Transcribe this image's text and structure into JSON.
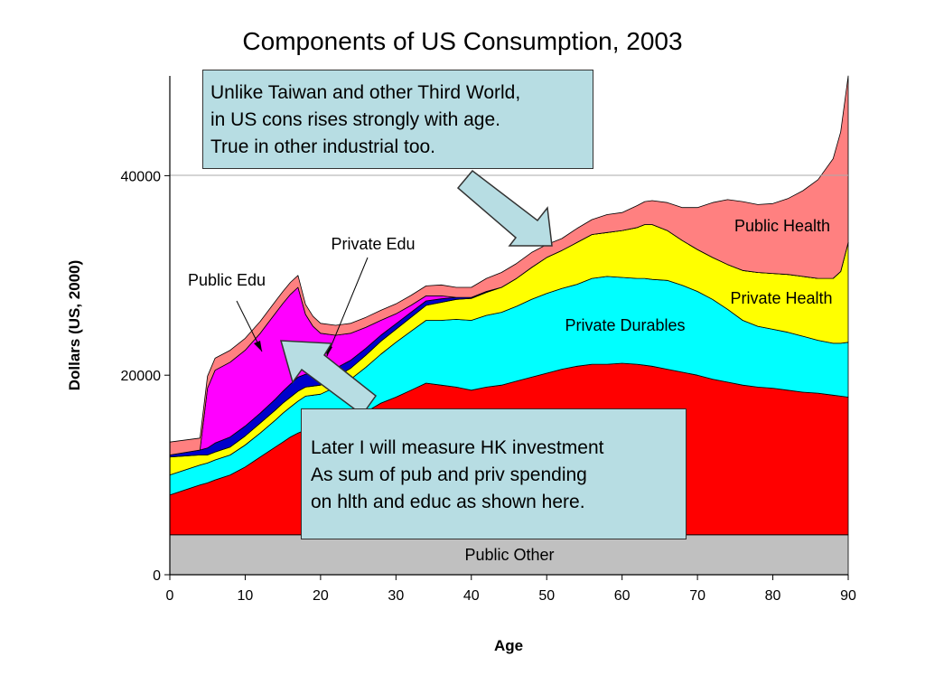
{
  "chart_data": {
    "type": "area",
    "stacked": true,
    "title": "Components of US Consumption, 2003",
    "xlabel": "Age",
    "ylabel": "Dollars (US, 2000)",
    "xlim": [
      0,
      90
    ],
    "ylim": [
      0,
      50000
    ],
    "xticks": [
      0,
      10,
      20,
      30,
      40,
      50,
      60,
      70,
      80,
      90
    ],
    "yticks": [
      0,
      20000,
      40000
    ],
    "grid": "horizontal at 40000",
    "x": [
      0,
      4,
      5,
      6,
      8,
      10,
      12,
      14,
      15,
      16,
      17,
      18,
      19,
      20,
      22,
      24,
      26,
      28,
      30,
      32,
      34,
      36,
      38,
      40,
      42,
      44,
      46,
      48,
      50,
      52,
      54,
      56,
      58,
      60,
      62,
      63,
      64,
      66,
      68,
      70,
      72,
      74,
      76,
      78,
      80,
      82,
      84,
      86,
      88,
      89,
      90
    ],
    "series": [
      {
        "name": "Public Other",
        "color": "#c0c0c0",
        "values": [
          4000,
          4000,
          4000,
          4000,
          4000,
          4000,
          4000,
          4000,
          4000,
          4000,
          4000,
          4000,
          4000,
          4000,
          4000,
          4000,
          4000,
          4000,
          4000,
          4000,
          4000,
          4000,
          4000,
          4000,
          4000,
          4000,
          4000,
          4000,
          4000,
          4000,
          4000,
          4000,
          4000,
          4000,
          4000,
          4000,
          4000,
          4000,
          4000,
          4000,
          4000,
          4000,
          4000,
          4000,
          4000,
          4000,
          4000,
          4000,
          4000,
          4000,
          4000
        ]
      },
      {
        "color": "#ff0000",
        "values": [
          4000,
          5000,
          5200,
          5500,
          6000,
          6800,
          7800,
          8800,
          9300,
          9800,
          10200,
          10500,
          10500,
          10500,
          11000,
          11500,
          12300,
          13200,
          13800,
          14500,
          15200,
          15000,
          14800,
          14500,
          14800,
          15000,
          15400,
          15800,
          16200,
          16600,
          16900,
          17100,
          17100,
          17200,
          17100,
          17000,
          16900,
          16600,
          16300,
          16000,
          15600,
          15300,
          15000,
          14800,
          14700,
          14500,
          14300,
          14200,
          14000,
          13900,
          13800
        ]
      },
      {
        "name": "Private Durables",
        "color": "#00ffff",
        "values": [
          2000,
          2000,
          2000,
          2000,
          2000,
          2200,
          2400,
          2700,
          2900,
          3000,
          3200,
          3400,
          3500,
          3600,
          3800,
          4100,
          4500,
          4900,
          5500,
          5900,
          6300,
          6500,
          6800,
          7000,
          7200,
          7300,
          7500,
          7800,
          8000,
          8100,
          8200,
          8600,
          8800,
          8600,
          8600,
          8700,
          8700,
          8900,
          8700,
          8400,
          8000,
          7300,
          6500,
          6100,
          5900,
          5800,
          5600,
          5300,
          5200,
          5300,
          5500
        ]
      },
      {
        "name": "Private Health",
        "color": "#ffff00",
        "values": [
          1800,
          1000,
          800,
          800,
          800,
          900,
          1000,
          1000,
          1000,
          1000,
          1000,
          900,
          900,
          900,
          1000,
          1100,
          1200,
          1300,
          1300,
          1400,
          1500,
          1800,
          2000,
          2200,
          2300,
          2500,
          2800,
          3200,
          3600,
          3800,
          4200,
          4400,
          4400,
          4700,
          5100,
          5400,
          5500,
          5000,
          4500,
          4200,
          4200,
          4500,
          5000,
          5400,
          5600,
          5800,
          6000,
          6200,
          6500,
          7200,
          10000
        ]
      },
      {
        "color": "#0000cc",
        "values": [
          200,
          500,
          700,
          900,
          1000,
          1000,
          1000,
          1100,
          1200,
          1300,
          1400,
          1300,
          1200,
          1100,
          900,
          800,
          700,
          600,
          550,
          500,
          450,
          350,
          200,
          100,
          100,
          0,
          0,
          0,
          0,
          0,
          0,
          0,
          0,
          0,
          0,
          0,
          0,
          0,
          0,
          0,
          0,
          0,
          0,
          0,
          0,
          0,
          0,
          0,
          0,
          0,
          0
        ]
      },
      {
        "name": "Private Edu",
        "color": "#000000",
        "values": [
          0,
          0,
          0,
          0,
          0,
          0,
          0,
          0,
          0,
          0,
          0,
          0,
          0,
          0,
          0,
          0,
          0,
          0,
          0,
          0,
          0,
          0,
          0,
          0,
          0,
          0,
          0,
          0,
          0,
          0,
          0,
          0,
          0,
          0,
          0,
          0,
          0,
          0,
          0,
          0,
          0,
          0,
          0,
          0,
          0,
          0,
          0,
          0,
          0,
          0,
          0
        ]
      },
      {
        "name": "Public Edu",
        "color": "#ff00ff",
        "values": [
          0,
          0,
          6000,
          7300,
          7500,
          7600,
          8000,
          8600,
          8800,
          9000,
          9000,
          6000,
          4800,
          4100,
          3300,
          2700,
          2100,
          1500,
          1000,
          700,
          500,
          300,
          0,
          0,
          0,
          0,
          0,
          0,
          0,
          0,
          0,
          0,
          0,
          0,
          0,
          0,
          0,
          0,
          0,
          0,
          0,
          0,
          0,
          0,
          0,
          0,
          0,
          0,
          0,
          0,
          0
        ]
      },
      {
        "name": "Public Health",
        "color": "#ff8080",
        "values": [
          1300,
          1200,
          1200,
          1200,
          1200,
          1200,
          1200,
          1200,
          1200,
          1200,
          1200,
          1000,
          1000,
          1000,
          1000,
          1000,
          1000,
          1000,
          1000,
          1000,
          1000,
          1100,
          1000,
          1000,
          1300,
          1500,
          1500,
          1500,
          1300,
          1200,
          1400,
          1500,
          1800,
          1800,
          2200,
          2300,
          2400,
          2800,
          3300,
          4200,
          5500,
          6500,
          6900,
          6800,
          7000,
          7600,
          8600,
          9900,
          12000,
          14000,
          16700
        ]
      }
    ],
    "series_labels": [
      "Public Other",
      "Private Durables",
      "Private Health",
      "Public Health",
      "Private Edu",
      "Public Edu"
    ],
    "annotations": {
      "top": [
        "Unlike Taiwan and other Third World,",
        "in US cons rises strongly with age.",
        "True in other industrial too."
      ],
      "bottom": [
        "Later I will measure HK investment",
        "As sum of pub and priv spending",
        "on hlth and educ as shown here."
      ]
    }
  }
}
